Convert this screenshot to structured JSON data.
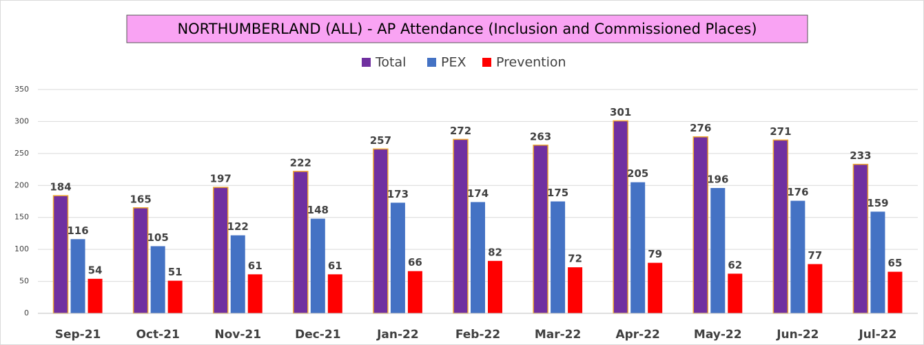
{
  "chart_data": {
    "type": "bar",
    "title": "NORTHUMBERLAND (ALL)  - AP Attendance (Inclusion and Commissioned Places)",
    "categories": [
      "Sep-21",
      "Oct-21",
      "Nov-21",
      "Dec-21",
      "Jan-22",
      "Feb-22",
      "Mar-22",
      "Apr-22",
      "May-22",
      "Jun-22",
      "Jul-22"
    ],
    "series": [
      {
        "name": "Total",
        "color": "#7030a0",
        "values": [
          184,
          165,
          197,
          222,
          257,
          272,
          263,
          301,
          276,
          271,
          233
        ]
      },
      {
        "name": "PEX",
        "color": "#4472c4",
        "values": [
          116,
          105,
          122,
          148,
          173,
          174,
          175,
          205,
          196,
          176,
          159
        ]
      },
      {
        "name": "Prevention",
        "color": "#ff0000",
        "values": [
          54,
          51,
          61,
          61,
          66,
          82,
          72,
          79,
          62,
          77,
          65
        ]
      }
    ],
    "ylim": [
      0,
      350
    ],
    "yticks": [
      0,
      50,
      100,
      150,
      200,
      250,
      300,
      350
    ],
    "grid": true,
    "legend": "top"
  }
}
